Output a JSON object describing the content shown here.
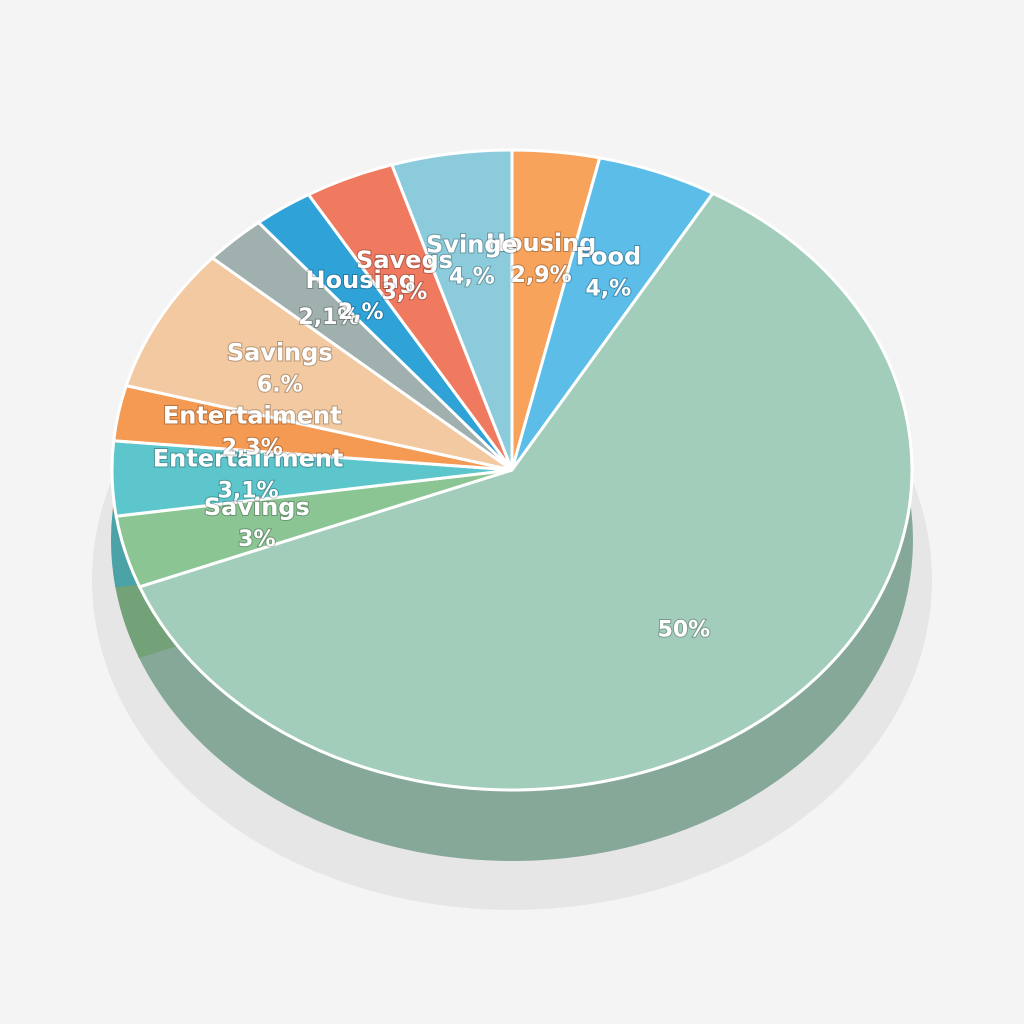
{
  "chart_data": {
    "type": "pie",
    "categories": [
      "Housing",
      "Food",
      null,
      "Savings",
      "Entertairment",
      "Entertaiment",
      "Savings",
      null,
      "Housing",
      "Savegs",
      "Svinge"
    ],
    "values": [
      2.9,
      4,
      50,
      3,
      3.1,
      2.3,
      6,
      2.1,
      2,
      3,
      4
    ],
    "value_labels": [
      "2,9%",
      "4,%",
      "50%",
      "3%",
      "3,1%",
      "2,3%",
      "6.%",
      "2,1%",
      "2,%",
      "3,%",
      "4,%"
    ],
    "colors": [
      "#f7a35c",
      "#5bbde8",
      "#a3cdbb",
      "#8cc594",
      "#5cc6cc",
      "#f59a52",
      "#f2c9a0",
      "#9fb0ae",
      "#2fa3d8",
      "#ef7a60",
      "#8ccbdb"
    ]
  }
}
